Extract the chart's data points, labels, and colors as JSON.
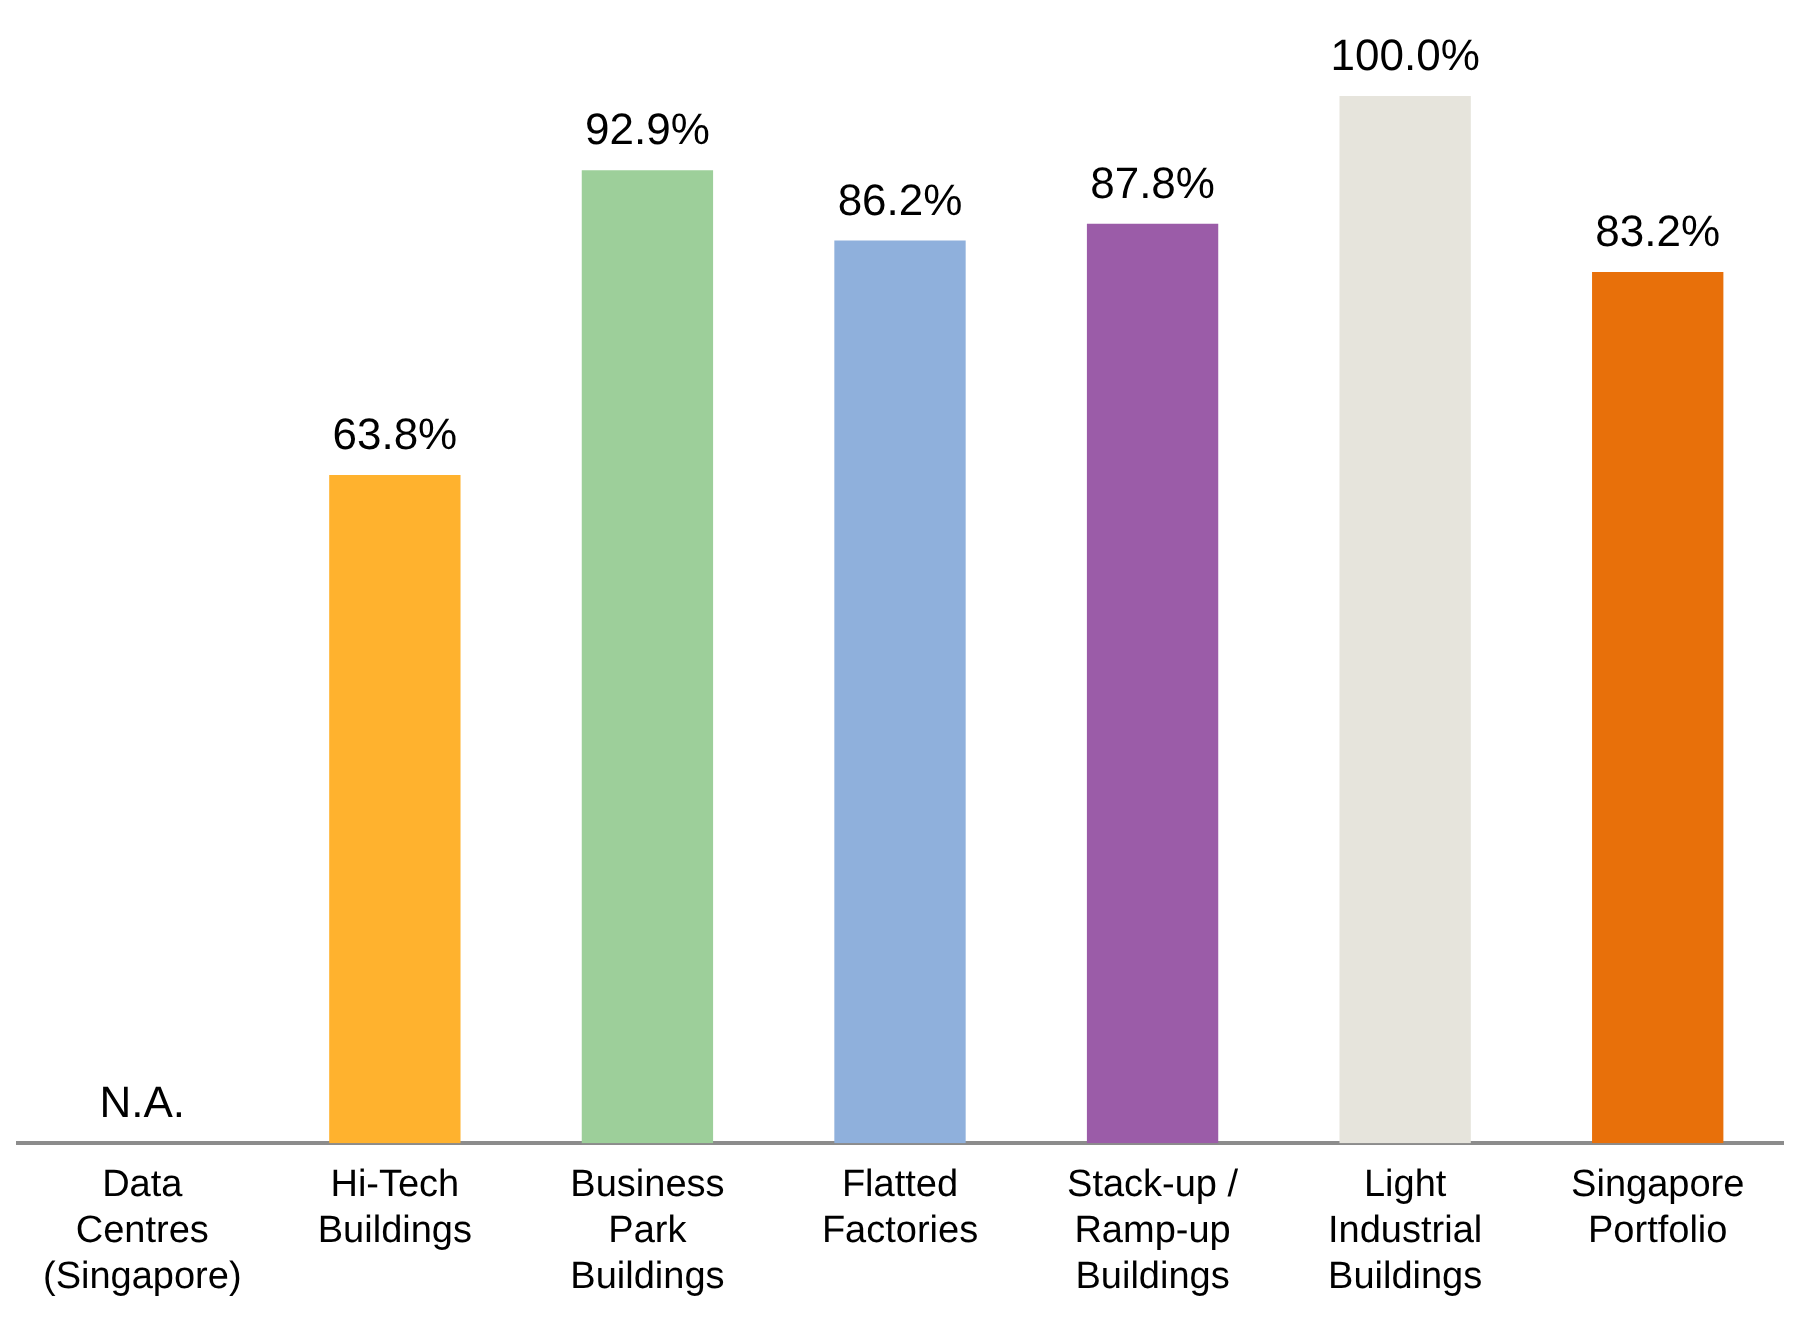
{
  "chart_data": {
    "type": "bar",
    "categories": [
      "Data Centres (Singapore)",
      "Hi-Tech Buildings",
      "Business Park Buildings",
      "Flatted Factories",
      "Stack-up / Ramp-up Buildings",
      "Light Industrial Buildings",
      "Singapore Portfolio"
    ],
    "values": [
      null,
      63.8,
      92.9,
      86.2,
      87.8,
      100.0,
      83.2
    ],
    "colors": [
      "#ffb22e",
      "#ffb22e",
      "#9dcf9a",
      "#8fb0dc",
      "#9b5ca8",
      "#e6e4dc",
      "#e8700a"
    ],
    "value_labels": [
      "N.A.",
      "63.8%",
      "92.9%",
      "86.2%",
      "87.8%",
      "100.0%",
      "83.2%"
    ],
    "ylim": [
      0,
      100
    ],
    "tick_labels": "x",
    "grid": false,
    "legend": false
  }
}
